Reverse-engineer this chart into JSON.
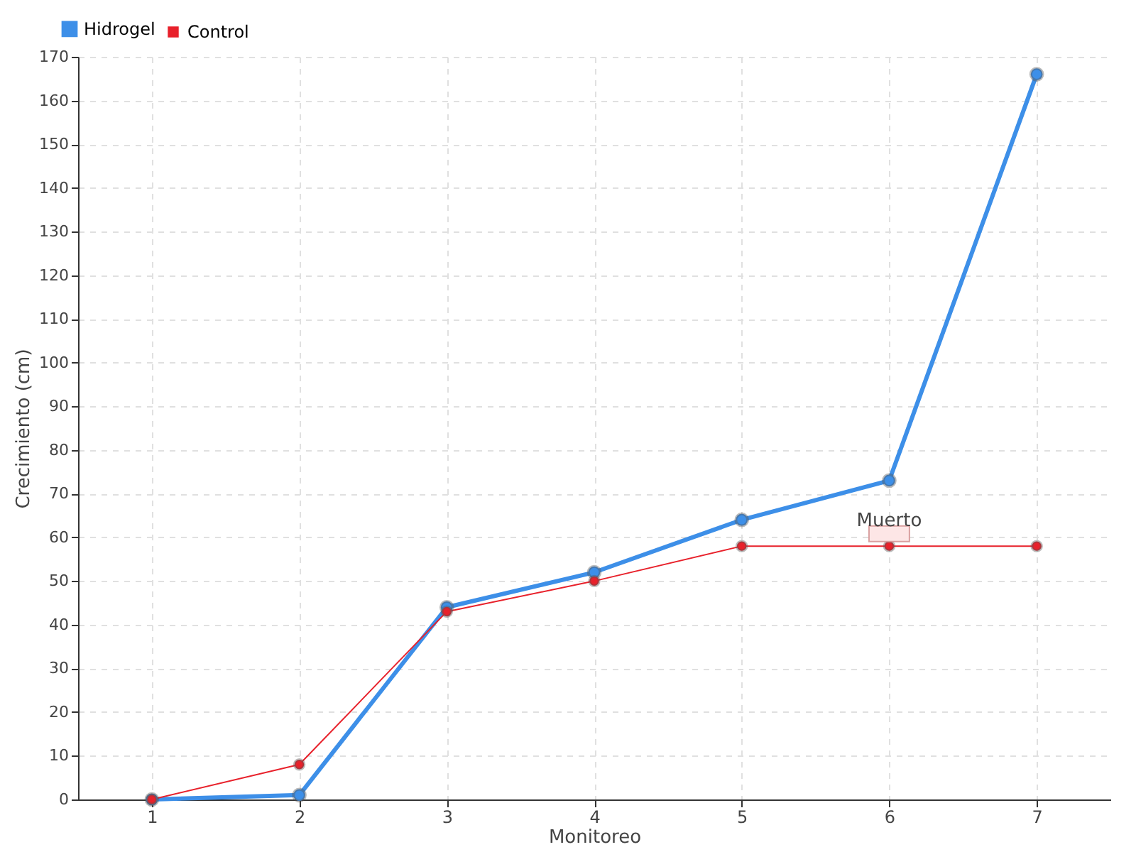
{
  "chart_data": {
    "type": "line",
    "xlabel": "Monitoreo",
    "ylabel": "Crecimiento (cm)",
    "categories": [
      "1",
      "2",
      "3",
      "4",
      "5",
      "6",
      "7"
    ],
    "series": [
      {
        "name": "Hidrogel",
        "color": "#3d8fe8",
        "values": [
          0,
          1,
          44,
          52,
          64,
          73,
          166
        ]
      },
      {
        "name": "Control",
        "color": "#e8212b",
        "values": [
          0,
          8,
          43,
          50,
          58,
          58,
          58
        ]
      }
    ],
    "annotations": [
      {
        "text": "Muerto",
        "x": "6",
        "y": 58
      }
    ],
    "ylim": [
      0,
      170
    ],
    "yticks": [
      0,
      10,
      20,
      30,
      40,
      50,
      60,
      70,
      80,
      90,
      100,
      110,
      120,
      130,
      140,
      150,
      160,
      170
    ],
    "grid": true,
    "legend": "top left",
    "marker": "circle",
    "line_style": "solid"
  }
}
